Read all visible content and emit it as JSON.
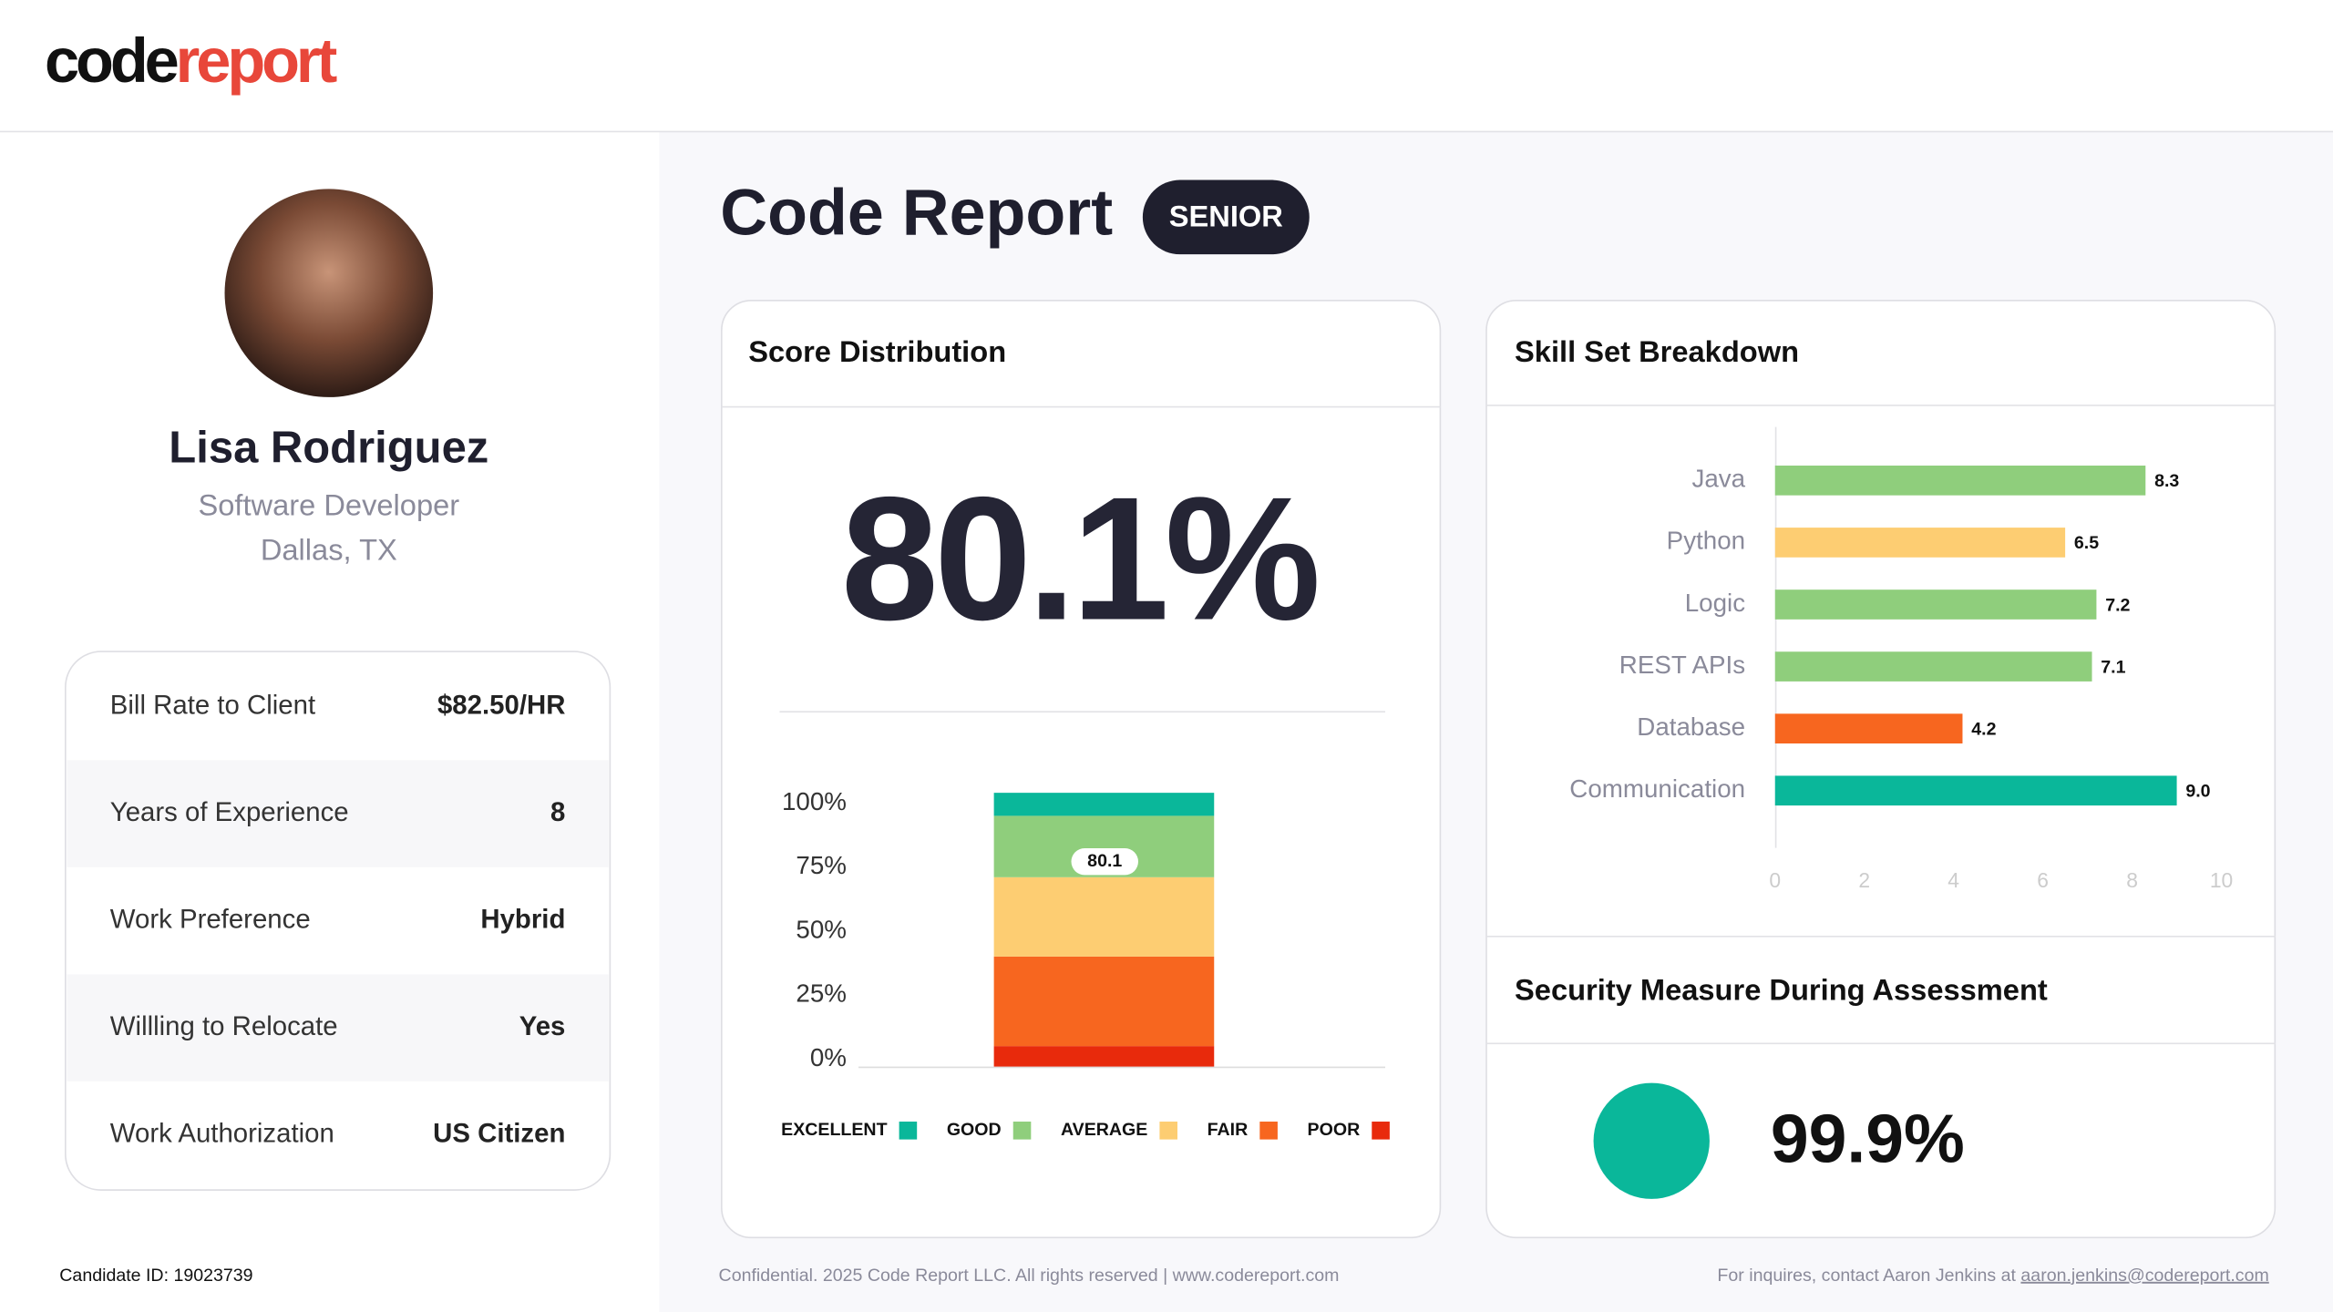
{
  "header": {
    "logo_left": "code",
    "logo_right": "report"
  },
  "profile": {
    "name": "Lisa Rodriguez",
    "role": "Software Developer",
    "location": "Dallas, TX"
  },
  "details": {
    "rows": [
      [
        "Bill Rate to Client",
        "$82.50/HR"
      ],
      [
        "Years of Experience",
        "8"
      ],
      [
        "Work Preference",
        "Hybrid"
      ],
      [
        "Willling to Relocate",
        "Yes"
      ],
      [
        "Work Authorization",
        "US Citizen"
      ]
    ]
  },
  "candidate_id": "Candidate ID: 19023739",
  "report": {
    "title": "Code Report",
    "badge": "SENIOR"
  },
  "chart_data": [
    {
      "type": "stacked_bar",
      "title": "Score Distribution",
      "headline": "80.1%",
      "categories": [
        null
      ],
      "series": [
        {
          "name": "POOR",
          "color": "#e82a0c",
          "values": [
            8
          ]
        },
        {
          "name": "FAIR",
          "color": "#f7661f",
          "values": [
            35
          ]
        },
        {
          "name": "AVERAGE",
          "color": "#fdcd72",
          "values": [
            31
          ]
        },
        {
          "name": "GOOD",
          "color": "#8fce7c",
          "values": [
            24
          ]
        },
        {
          "name": "EXCELLENT",
          "color": "#0ab79a",
          "values": [
            9
          ]
        }
      ],
      "marker": 80.1,
      "ylim": [
        0,
        100
      ],
      "yticks": [
        {
          "value": 0,
          "label": "0%"
        },
        {
          "value": 25,
          "label": "25%"
        },
        {
          "value": 50,
          "label": "50%"
        },
        {
          "value": 75,
          "label": "75%"
        },
        {
          "value": 100,
          "label": "100%"
        }
      ]
    },
    {
      "type": "barh",
      "title": "Skill Set Breakdown",
      "categories": [
        "Java",
        "Python",
        "Logic",
        "REST APIs",
        "Database",
        "Communication"
      ],
      "values": [
        8.3,
        6.5,
        7.2,
        7.1,
        4.2,
        9.0
      ],
      "value_labels": [
        "8.3",
        "6.5",
        "7.2",
        "7.1",
        "4.2",
        "9.0"
      ],
      "colors": [
        "#8fce7c",
        "#fdcd72",
        "#8fce7c",
        "#8fce7c",
        "#f7661f",
        "#0ab79a"
      ],
      "xlim": [
        0,
        10
      ],
      "xticks": [
        0,
        2,
        4,
        6,
        8,
        10
      ]
    }
  ],
  "security": {
    "title": "Security Measure During Assessment",
    "value": "99.9%"
  },
  "footer": {
    "left": "Confidential. 2025 Code Report LLC. All rights reserved | www.codereport.com",
    "contact": "For inquires, contact Aaron Jenkins at ",
    "email": "aaron.jenkins@codereport.com"
  }
}
